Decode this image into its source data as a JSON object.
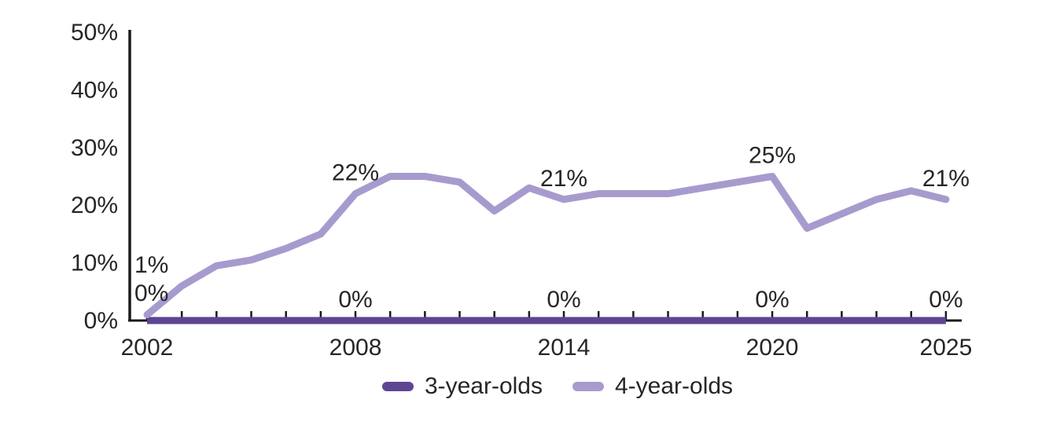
{
  "chart_data": {
    "type": "line",
    "x": [
      2002,
      2003,
      2004,
      2005,
      2006,
      2007,
      2008,
      2009,
      2010,
      2011,
      2012,
      2013,
      2014,
      2015,
      2016,
      2017,
      2018,
      2019,
      2020,
      2021,
      2022,
      2023,
      2024,
      2025
    ],
    "series": [
      {
        "name": "3-year-olds",
        "color": "#5e4593",
        "values": [
          0,
          0,
          0,
          0,
          0,
          0,
          0,
          0,
          0,
          0,
          0,
          0,
          0,
          0,
          0,
          0,
          0,
          0,
          0,
          0,
          0,
          0,
          0,
          0
        ]
      },
      {
        "name": "4-year-olds",
        "color": "#a79bce",
        "values": [
          1,
          6,
          9.5,
          10.5,
          12.5,
          15,
          22,
          25,
          25,
          24,
          19,
          23,
          21,
          22,
          22,
          22,
          23,
          24,
          25,
          16,
          18.5,
          21,
          22.5,
          21
        ]
      }
    ],
    "ylim": [
      0,
      50
    ],
    "yticks": [
      0,
      10,
      20,
      30,
      40,
      50
    ],
    "ytick_labels": [
      "0%",
      "10%",
      "20%",
      "30%",
      "40%",
      "50%"
    ],
    "xticks": [
      2002,
      2008,
      2014,
      2020,
      2025
    ],
    "xtick_labels": [
      "2002",
      "2008",
      "2014",
      "2020",
      "2025"
    ],
    "grid": false,
    "legend_position": "bottom",
    "point_labels": [
      {
        "series": 1,
        "year": 2002,
        "text": "1%"
      },
      {
        "series": 0,
        "year": 2002,
        "text": "0%"
      },
      {
        "series": 1,
        "year": 2008,
        "text": "22%"
      },
      {
        "series": 0,
        "year": 2008,
        "text": "0%"
      },
      {
        "series": 1,
        "year": 2014,
        "text": "21%"
      },
      {
        "series": 0,
        "year": 2014,
        "text": "0%"
      },
      {
        "series": 1,
        "year": 2020,
        "text": "25%"
      },
      {
        "series": 0,
        "year": 2020,
        "text": "0%"
      },
      {
        "series": 1,
        "year": 2025,
        "text": "21%"
      },
      {
        "series": 0,
        "year": 2025,
        "text": "0%"
      }
    ]
  },
  "legend": {
    "items": [
      {
        "label": "3-year-olds",
        "color": "#5e4593"
      },
      {
        "label": "4-year-olds",
        "color": "#a79bce"
      }
    ]
  },
  "colors": {
    "axis": "#1a1a1a",
    "text": "#262626",
    "background": "#ffffff",
    "series_dark": "#5e4593",
    "series_light": "#a79bce"
  }
}
